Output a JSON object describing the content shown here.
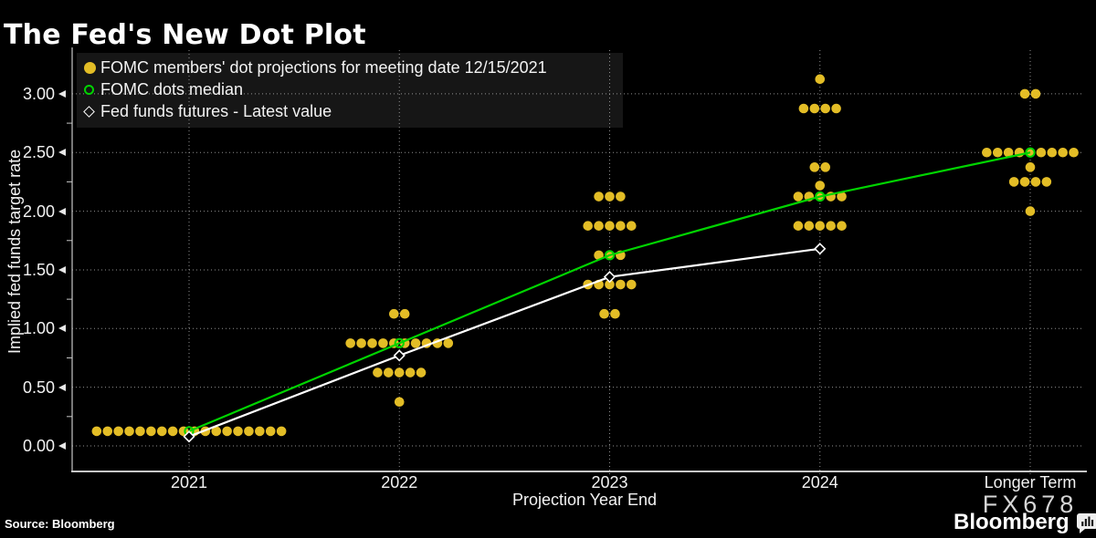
{
  "title": "The Fed's New Dot Plot",
  "source": "Source: Bloomberg",
  "watermark": "FX678",
  "brand": {
    "name": "Bloomberg",
    "icon": "bar-chart-bubble-icon"
  },
  "legend": [
    {
      "marker": "filled-circle",
      "color": "#e3bd26",
      "label": "FOMC members' dot projections for meeting date 12/15/2021"
    },
    {
      "marker": "open-circle",
      "color": "#00d400",
      "label": "FOMC dots median"
    },
    {
      "marker": "open-diamond",
      "color": "#ffffff",
      "label": "Fed funds futures - Latest value"
    }
  ],
  "colors": {
    "background": "#000000",
    "dot_yellow": "#e3bd26",
    "median_green": "#00d400",
    "futures_white": "#ffffff",
    "gridline": "#a8a8a8",
    "axis": "#c8c8c8",
    "legend_bg": "#161616",
    "text": "#f2f2f2"
  },
  "chart_data": {
    "type": "scatter",
    "subtype": "fomc-dot-plot",
    "title": "The Fed's New Dot Plot",
    "xlabel": "Projection Year End",
    "ylabel": "Implied fed funds target rate",
    "categories": [
      "2021",
      "2022",
      "2023",
      "2024",
      "Longer Term"
    ],
    "y_ticks": [
      "0.00",
      "0.50",
      "1.00",
      "1.50",
      "2.00",
      "2.50",
      "3.00"
    ],
    "ylim": [
      -0.35,
      3.35
    ],
    "grid": true,
    "legend_position": "top-left",
    "dots": [
      {
        "category": "2021",
        "value": 0.125,
        "count": 18
      },
      {
        "category": "2022",
        "value": 1.125,
        "count": 2
      },
      {
        "category": "2022",
        "value": 0.875,
        "count": 10
      },
      {
        "category": "2022",
        "value": 0.625,
        "count": 5
      },
      {
        "category": "2022",
        "value": 0.375,
        "count": 1
      },
      {
        "category": "2023",
        "value": 2.125,
        "count": 3
      },
      {
        "category": "2023",
        "value": 1.875,
        "count": 5
      },
      {
        "category": "2023",
        "value": 1.625,
        "count": 3
      },
      {
        "category": "2023",
        "value": 1.375,
        "count": 5
      },
      {
        "category": "2023",
        "value": 1.125,
        "count": 2
      },
      {
        "category": "2024",
        "value": 3.125,
        "count": 1
      },
      {
        "category": "2024",
        "value": 2.875,
        "count": 4
      },
      {
        "category": "2024",
        "value": 2.375,
        "count": 2
      },
      {
        "category": "2024",
        "value": 2.125,
        "count": 6,
        "stack": [
          5,
          1
        ]
      },
      {
        "category": "2024",
        "value": 1.875,
        "count": 5
      },
      {
        "category": "Longer Term",
        "value": 3.0,
        "count": 2
      },
      {
        "category": "Longer Term",
        "value": 2.5,
        "count": 9
      },
      {
        "category": "Longer Term",
        "value": 2.375,
        "count": 1
      },
      {
        "category": "Longer Term",
        "value": 2.25,
        "count": 4
      },
      {
        "category": "Longer Term",
        "value": 2.0,
        "count": 1
      }
    ],
    "series": [
      {
        "name": "FOMC dots median",
        "color": "#00d400",
        "marker": "open-circle",
        "categories": [
          "2021",
          "2022",
          "2023",
          "2024",
          "Longer Term"
        ],
        "values": [
          0.125,
          0.875,
          1.625,
          2.125,
          2.5
        ]
      },
      {
        "name": "Fed funds futures - Latest value",
        "color": "#ffffff",
        "marker": "open-diamond",
        "categories": [
          "2021",
          "2022",
          "2023",
          "2024"
        ],
        "values": [
          0.08,
          0.77,
          1.44,
          1.68
        ]
      }
    ]
  }
}
